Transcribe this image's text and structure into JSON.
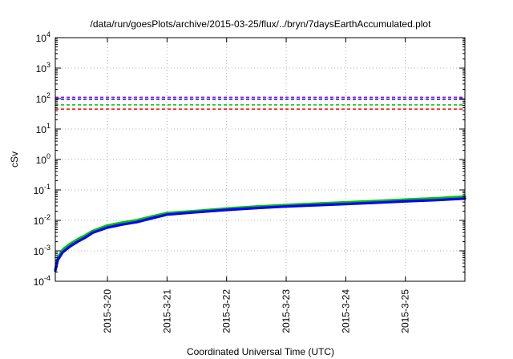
{
  "chart_data": {
    "type": "line",
    "title": "/data/run/goesPlots/archive/2015-03-25/flux/../bryn/7daysEarthAccumulated.plot",
    "xlabel": "Coordinated Universal Time (UTC)",
    "ylabel": "cSv",
    "x_range": [
      "2015-03-19 03:00",
      "2015-03-25 23:59"
    ],
    "x_ticks": [
      {
        "label": "2015-3-20",
        "date": "2015-03-20"
      },
      {
        "label": "2015-3-21",
        "date": "2015-03-21"
      },
      {
        "label": "2015-3-22",
        "date": "2015-03-22"
      },
      {
        "label": "2015-3-23",
        "date": "2015-03-23"
      },
      {
        "label": "2015-3-24",
        "date": "2015-03-24"
      },
      {
        "label": "2015-3-25",
        "date": "2015-03-25"
      }
    ],
    "y_scale": "log",
    "ylim": [
      0.0001,
      10000
    ],
    "y_ticks": [
      {
        "base": "10",
        "exp": "-4",
        "value": 0.0001
      },
      {
        "base": "10",
        "exp": "-3",
        "value": 0.001
      },
      {
        "base": "10",
        "exp": "-2",
        "value": 0.01
      },
      {
        "base": "10",
        "exp": "-1",
        "value": 0.1
      },
      {
        "base": "10",
        "exp": "0",
        "value": 1
      },
      {
        "base": "10",
        "exp": "1",
        "value": 10
      },
      {
        "base": "10",
        "exp": "2",
        "value": 100
      },
      {
        "base": "10",
        "exp": "3",
        "value": 1000
      },
      {
        "base": "10",
        "exp": "4",
        "value": 10000
      }
    ],
    "grid": true,
    "thresholds": [
      {
        "value": 110,
        "color": "#9400d3"
      },
      {
        "value": 95,
        "color": "#0000ff"
      },
      {
        "value": 62,
        "color": "#00c000"
      },
      {
        "value": 45,
        "color": "#ff0000"
      }
    ],
    "series": [
      {
        "color": "#00c000",
        "points": [
          [
            "2015-03-19 03:00",
            0.00025
          ],
          [
            "2015-03-19 04:00",
            0.0006
          ],
          [
            "2015-03-19 06:00",
            0.0011
          ],
          [
            "2015-03-19 09:00",
            0.0017
          ],
          [
            "2015-03-19 12:00",
            0.0024
          ],
          [
            "2015-03-19 15:00",
            0.0032
          ],
          [
            "2015-03-19 18:00",
            0.0045
          ],
          [
            "2015-03-20 00:00",
            0.0068
          ],
          [
            "2015-03-20 06:00",
            0.0085
          ],
          [
            "2015-03-20 12:00",
            0.0102
          ],
          [
            "2015-03-20 18:00",
            0.0135
          ],
          [
            "2015-03-21 00:00",
            0.0175
          ],
          [
            "2015-03-21 12:00",
            0.0205
          ],
          [
            "2015-03-22 00:00",
            0.0245
          ],
          [
            "2015-03-22 12:00",
            0.0285
          ],
          [
            "2015-03-23 00:00",
            0.032
          ],
          [
            "2015-03-23 12:00",
            0.0355
          ],
          [
            "2015-03-24 00:00",
            0.039
          ],
          [
            "2015-03-24 12:00",
            0.043
          ],
          [
            "2015-03-25 00:00",
            0.048
          ],
          [
            "2015-03-25 12:00",
            0.053
          ],
          [
            "2015-03-25 23:59",
            0.06
          ]
        ]
      },
      {
        "color": "#0000ff",
        "points": [
          [
            "2015-03-19 03:00",
            0.00022
          ],
          [
            "2015-03-19 04:00",
            0.0005
          ],
          [
            "2015-03-19 06:00",
            0.0009
          ],
          [
            "2015-03-19 09:00",
            0.0014
          ],
          [
            "2015-03-19 12:00",
            0.002
          ],
          [
            "2015-03-19 15:00",
            0.0027
          ],
          [
            "2015-03-19 18:00",
            0.0039
          ],
          [
            "2015-03-20 00:00",
            0.0058
          ],
          [
            "2015-03-20 06:00",
            0.0073
          ],
          [
            "2015-03-20 12:00",
            0.0088
          ],
          [
            "2015-03-20 18:00",
            0.0118
          ],
          [
            "2015-03-21 00:00",
            0.0155
          ],
          [
            "2015-03-21 12:00",
            0.0185
          ],
          [
            "2015-03-22 00:00",
            0.022
          ],
          [
            "2015-03-22 12:00",
            0.0255
          ],
          [
            "2015-03-23 00:00",
            0.0285
          ],
          [
            "2015-03-23 12:00",
            0.0315
          ],
          [
            "2015-03-24 00:00",
            0.0345
          ],
          [
            "2015-03-24 12:00",
            0.038
          ],
          [
            "2015-03-25 00:00",
            0.042
          ],
          [
            "2015-03-25 12:00",
            0.046
          ],
          [
            "2015-03-25 23:59",
            0.052
          ]
        ]
      }
    ]
  }
}
